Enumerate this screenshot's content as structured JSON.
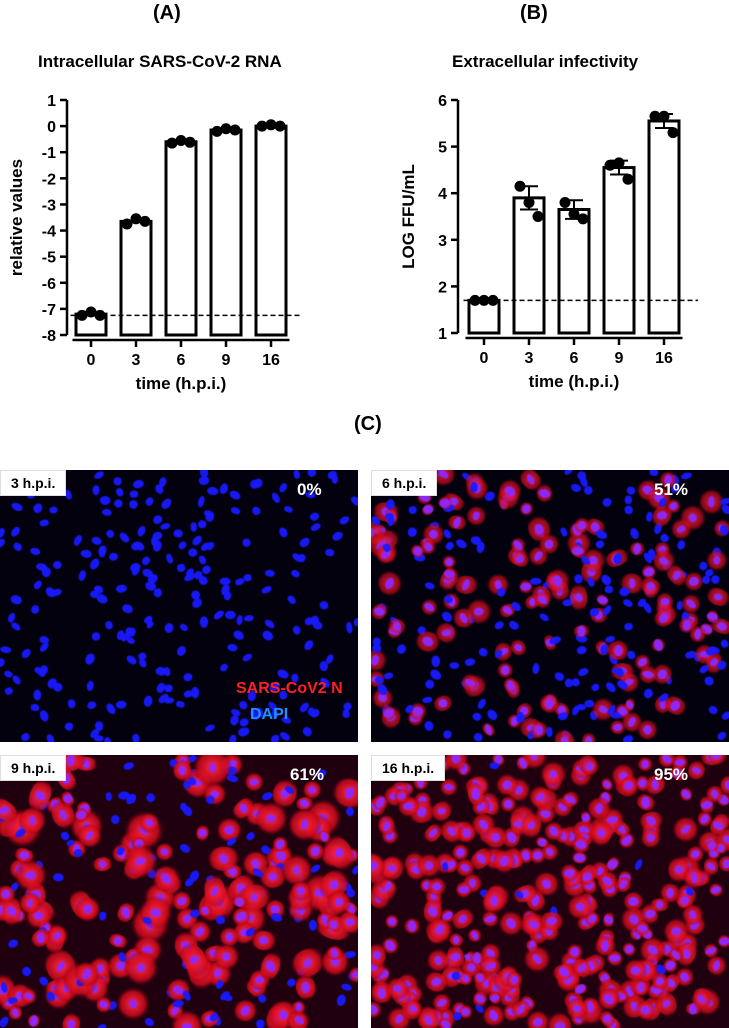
{
  "panels": {
    "a_letter": "(A)",
    "b_letter": "(B)",
    "c_letter": "(C)"
  },
  "chart_data": [
    {
      "type": "bar",
      "title": "Intracellular SARS-CoV-2 RNA",
      "xlabel": "time (h.p.i.)",
      "ylabel": "relative values",
      "categories": [
        "0",
        "3",
        "6",
        "9",
        "16"
      ],
      "ylim": [
        -8,
        1
      ],
      "yticks": [
        1,
        0,
        -1,
        -2,
        -3,
        -4,
        -5,
        -6,
        -7,
        -8
      ],
      "baseline": -8,
      "threshold": -7.25,
      "series": [
        {
          "values": [
            -7.2,
            -3.65,
            -0.6,
            -0.15,
            0.0
          ],
          "points": [
            [
              -7.25,
              -7.12,
              -7.25
            ],
            [
              -3.75,
              -3.55,
              -3.65
            ],
            [
              -0.65,
              -0.55,
              -0.62
            ],
            [
              -0.2,
              -0.1,
              -0.15
            ],
            [
              0.0,
              0.05,
              0.0
            ]
          ]
        }
      ],
      "grid": false
    },
    {
      "type": "bar",
      "title": "Extracellular infectivity",
      "xlabel": "time (h.p.i.)",
      "ylabel": "LOG FFU/mL",
      "categories": [
        "0",
        "3",
        "6",
        "9",
        "16"
      ],
      "ylim": [
        1,
        6
      ],
      "yticks": [
        1,
        2,
        3,
        4,
        5,
        6
      ],
      "baseline": 1,
      "threshold": 1.7,
      "series": [
        {
          "values": [
            1.7,
            3.9,
            3.65,
            4.55,
            5.55
          ],
          "errors": [
            0.03,
            0.25,
            0.2,
            0.15,
            0.15
          ],
          "points": [
            [
              1.7,
              1.7,
              1.7
            ],
            [
              4.15,
              3.8,
              3.5
            ],
            [
              3.8,
              3.55,
              3.45
            ],
            [
              4.6,
              4.65,
              4.3
            ],
            [
              5.65,
              5.65,
              5.3
            ]
          ]
        }
      ],
      "grid": false
    }
  ],
  "micrographs": [
    {
      "label": "3 h.p.i.",
      "percent": "0%",
      "infected_fraction": 0.0,
      "red_intensity": 0.0
    },
    {
      "label": "6 h.p.i.",
      "percent": "51%",
      "infected_fraction": 0.51,
      "red_intensity": 0.55
    },
    {
      "label": "9 h.p.i.",
      "percent": "61%",
      "infected_fraction": 0.61,
      "red_intensity": 1.0
    },
    {
      "label": "16 h.p.i.",
      "percent": "95%",
      "infected_fraction": 0.95,
      "red_intensity": 0.8
    }
  ],
  "stain_legend": {
    "red_label": "SARS-CoV2 N",
    "blue_label": "DAPI",
    "red_color": "#ff2020",
    "blue_color": "#1e90ff"
  },
  "colors": {
    "bar_fill": "#ffffff",
    "bar_stroke": "#000000",
    "dapi_blue": "#1a1aff",
    "nucleocapsid_red": "#e0102a"
  }
}
